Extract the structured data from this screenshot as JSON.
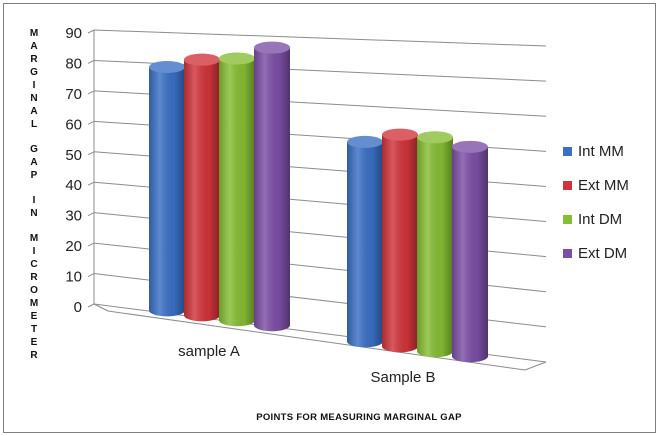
{
  "chart_data": {
    "type": "bar",
    "style": "3d-cylinder",
    "categories": [
      "sample A",
      "Sample B"
    ],
    "series": [
      {
        "name": "Int MM",
        "values": [
          78,
          60
        ],
        "color": "#3a6fc4"
      },
      {
        "name": "Ext MM",
        "values": [
          81,
          63
        ],
        "color": "#d0343a"
      },
      {
        "name": "Int DM",
        "values": [
          82,
          63
        ],
        "color": "#86bd33"
      },
      {
        "name": "Ext DM",
        "values": [
          86,
          61
        ],
        "color": "#7c4fa6"
      }
    ],
    "xlabel": "POINTS FOR MEASURING MARGINAL GAP",
    "ylabel": "MARGINAL GAP IN MICROMETER",
    "ylim": [
      0,
      90
    ],
    "yticks": [
      "0",
      "10",
      "20",
      "30",
      "40",
      "50",
      "60",
      "70",
      "80",
      "90"
    ],
    "grid": true,
    "legend": "right"
  }
}
